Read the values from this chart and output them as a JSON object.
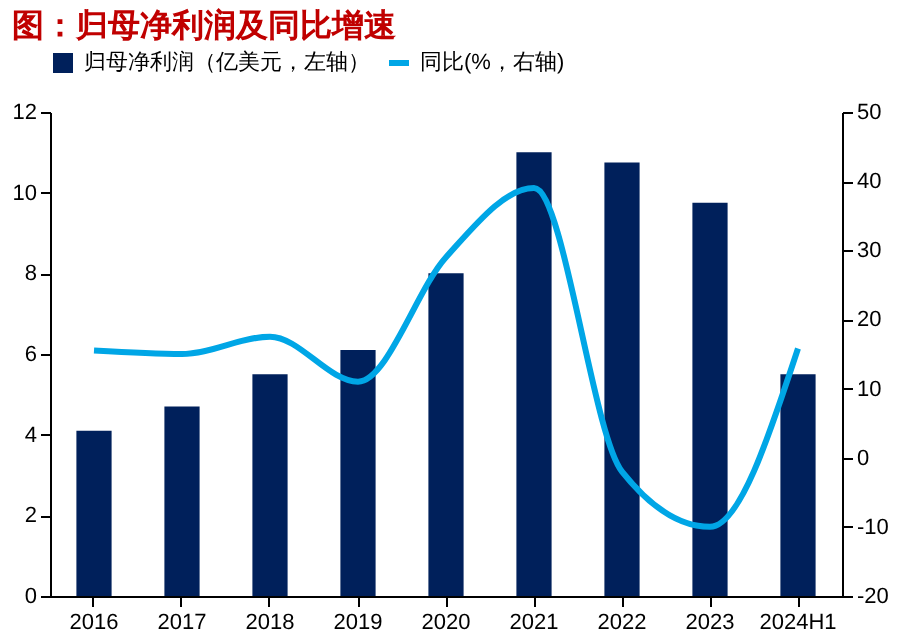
{
  "chart_data": {
    "type": "bar",
    "title": "图：归母净利润及同比增速",
    "categories": [
      "2016",
      "2017",
      "2018",
      "2019",
      "2020",
      "2021",
      "2022",
      "2023",
      "2024H1"
    ],
    "series": [
      {
        "name": "归母净利润（亿美元，左轴）",
        "color": "#00205b",
        "values": [
          4.1,
          4.7,
          5.5,
          6.1,
          8.0,
          11.0,
          10.75,
          9.75,
          5.5
        ]
      },
      {
        "name": "同比(%，右轴)",
        "type": "line",
        "axis": "y2",
        "color": "#00a6e6",
        "values": [
          15.5,
          15,
          17.5,
          11,
          29,
          39,
          -2,
          -10,
          15.8
        ]
      }
    ],
    "ylim": [
      0,
      12
    ],
    "yticks": [
      0,
      2,
      4,
      6,
      8,
      10,
      12
    ],
    "y2lim": [
      -20,
      50
    ],
    "y2ticks": [
      -20,
      -10,
      0,
      10,
      20,
      30,
      40,
      50
    ],
    "legend": "top",
    "grid": false
  }
}
